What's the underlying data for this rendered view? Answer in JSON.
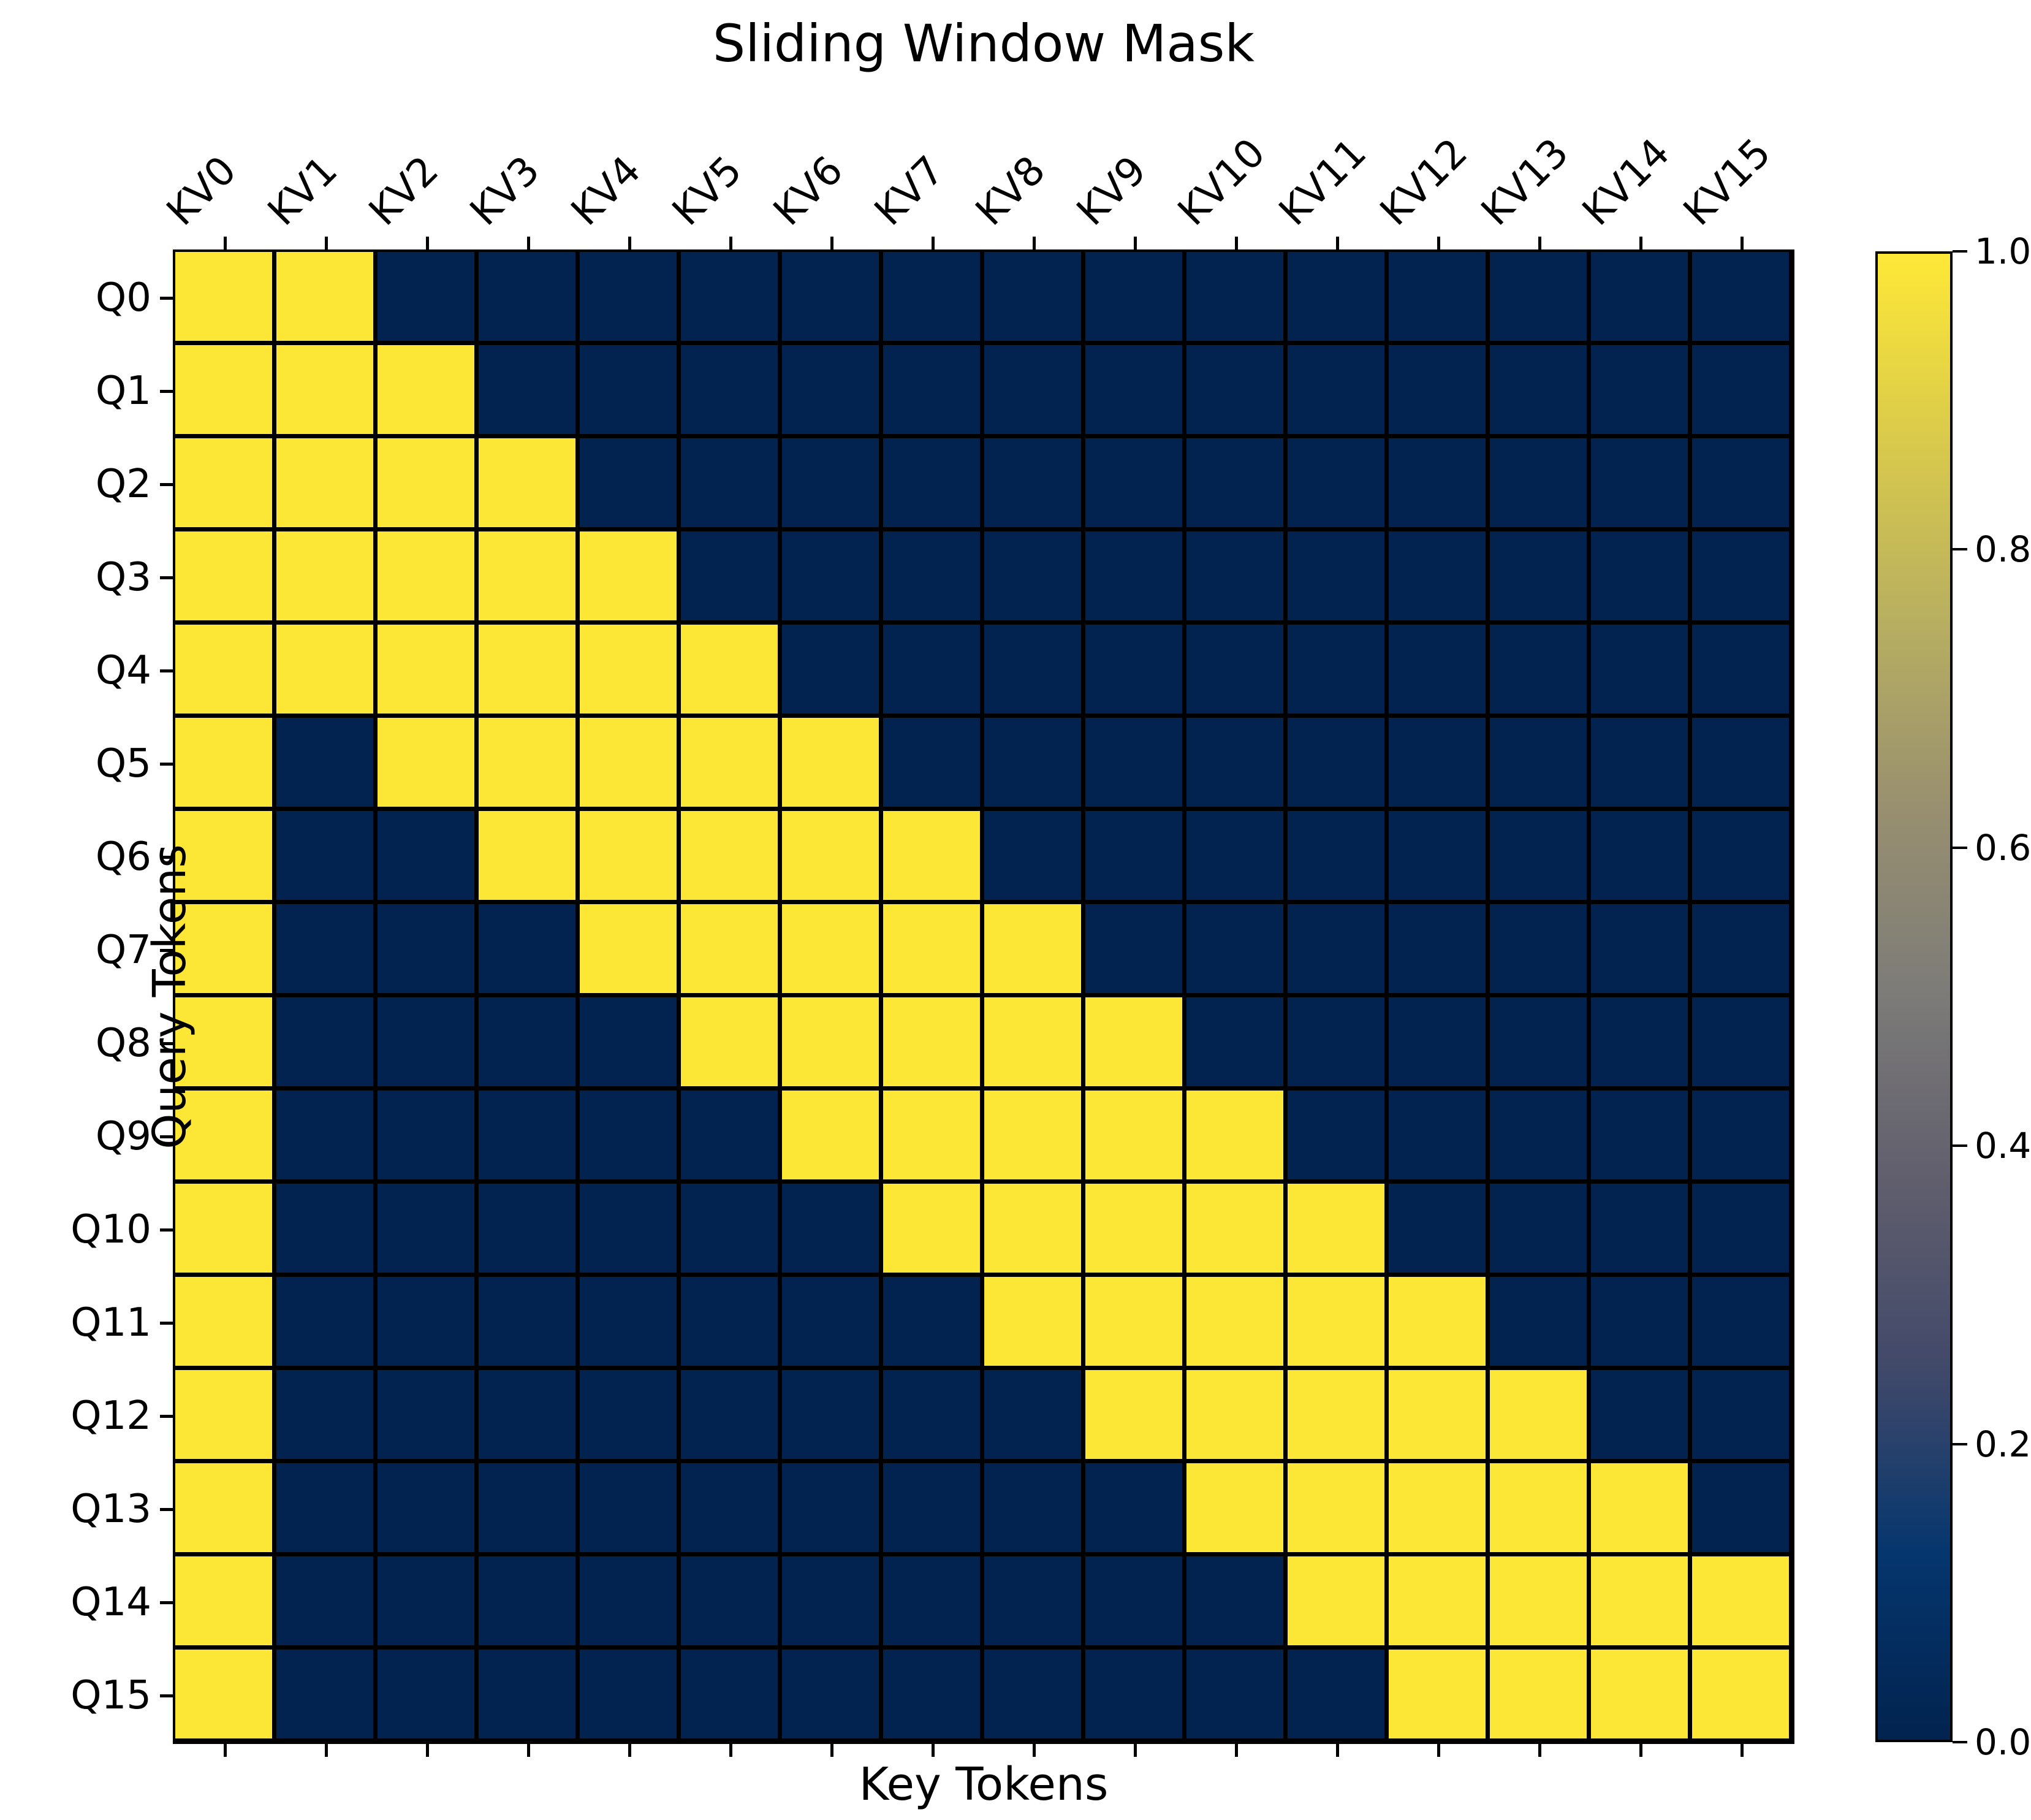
{
  "title": "Sliding Window Mask",
  "x_axis": {
    "label": "Key Tokens",
    "ticks": [
      "KV0",
      "KV1",
      "KV2",
      "KV3",
      "KV4",
      "KV5",
      "KV6",
      "KV7",
      "KV8",
      "KV9",
      "KV10",
      "KV11",
      "KV12",
      "KV13",
      "KV14",
      "KV15"
    ]
  },
  "y_axis": {
    "label": "Query Tokens",
    "ticks": [
      "Q0",
      "Q1",
      "Q2",
      "Q3",
      "Q4",
      "Q5",
      "Q6",
      "Q7",
      "Q8",
      "Q9",
      "Q10",
      "Q11",
      "Q12",
      "Q13",
      "Q14",
      "Q15"
    ]
  },
  "colorbar": {
    "tick_labels": [
      "1.0",
      "0.8",
      "0.6",
      "0.4",
      "0.2",
      "0.0"
    ],
    "tick_values": [
      1.0,
      0.8,
      0.6,
      0.4,
      0.2,
      0.0
    ],
    "gradient_bottom_to_top": [
      "#02234F",
      "#05366E",
      "#41496A",
      "#605E6D",
      "#7C7B78",
      "#988F70",
      "#B7AE61",
      "#D9CA4B",
      "#FEE837"
    ]
  },
  "colors": {
    "active_cell": "#FCE636",
    "inactive_cell": "#02234F",
    "grid_line": "#000000"
  },
  "chart_data": {
    "type": "heatmap",
    "title": "Sliding Window Mask",
    "xlabel": "Key Tokens",
    "ylabel": "Query Tokens",
    "columns": [
      "KV0",
      "KV1",
      "KV2",
      "KV3",
      "KV4",
      "KV5",
      "KV6",
      "KV7",
      "KV8",
      "KV9",
      "KV10",
      "KV11",
      "KV12",
      "KV13",
      "KV14",
      "KV15"
    ],
    "rows": [
      "Q0",
      "Q1",
      "Q2",
      "Q3",
      "Q4",
      "Q5",
      "Q6",
      "Q7",
      "Q8",
      "Q9",
      "Q10",
      "Q11",
      "Q12",
      "Q13",
      "Q14",
      "Q15"
    ],
    "vmin": 0,
    "vmax": 1,
    "colormap": "cividis",
    "legend_position": "right-colorbar",
    "grid": "black cell borders",
    "values": [
      [
        1,
        1,
        0,
        0,
        0,
        0,
        0,
        0,
        0,
        0,
        0,
        0,
        0,
        0,
        0,
        0
      ],
      [
        1,
        1,
        1,
        0,
        0,
        0,
        0,
        0,
        0,
        0,
        0,
        0,
        0,
        0,
        0,
        0
      ],
      [
        1,
        1,
        1,
        1,
        0,
        0,
        0,
        0,
        0,
        0,
        0,
        0,
        0,
        0,
        0,
        0
      ],
      [
        1,
        1,
        1,
        1,
        1,
        0,
        0,
        0,
        0,
        0,
        0,
        0,
        0,
        0,
        0,
        0
      ],
      [
        1,
        1,
        1,
        1,
        1,
        1,
        0,
        0,
        0,
        0,
        0,
        0,
        0,
        0,
        0,
        0
      ],
      [
        1,
        0,
        1,
        1,
        1,
        1,
        1,
        0,
        0,
        0,
        0,
        0,
        0,
        0,
        0,
        0
      ],
      [
        1,
        0,
        0,
        1,
        1,
        1,
        1,
        1,
        0,
        0,
        0,
        0,
        0,
        0,
        0,
        0
      ],
      [
        1,
        0,
        0,
        0,
        1,
        1,
        1,
        1,
        1,
        0,
        0,
        0,
        0,
        0,
        0,
        0
      ],
      [
        1,
        0,
        0,
        0,
        0,
        1,
        1,
        1,
        1,
        1,
        0,
        0,
        0,
        0,
        0,
        0
      ],
      [
        1,
        0,
        0,
        0,
        0,
        0,
        1,
        1,
        1,
        1,
        1,
        0,
        0,
        0,
        0,
        0
      ],
      [
        1,
        0,
        0,
        0,
        0,
        0,
        0,
        1,
        1,
        1,
        1,
        1,
        0,
        0,
        0,
        0
      ],
      [
        1,
        0,
        0,
        0,
        0,
        0,
        0,
        0,
        1,
        1,
        1,
        1,
        1,
        0,
        0,
        0
      ],
      [
        1,
        0,
        0,
        0,
        0,
        0,
        0,
        0,
        0,
        1,
        1,
        1,
        1,
        1,
        0,
        0
      ],
      [
        1,
        0,
        0,
        0,
        0,
        0,
        0,
        0,
        0,
        0,
        1,
        1,
        1,
        1,
        1,
        0
      ],
      [
        1,
        0,
        0,
        0,
        0,
        0,
        0,
        0,
        0,
        0,
        0,
        1,
        1,
        1,
        1,
        1
      ],
      [
        1,
        0,
        0,
        0,
        0,
        0,
        0,
        0,
        0,
        0,
        0,
        0,
        1,
        1,
        1,
        1
      ]
    ]
  }
}
